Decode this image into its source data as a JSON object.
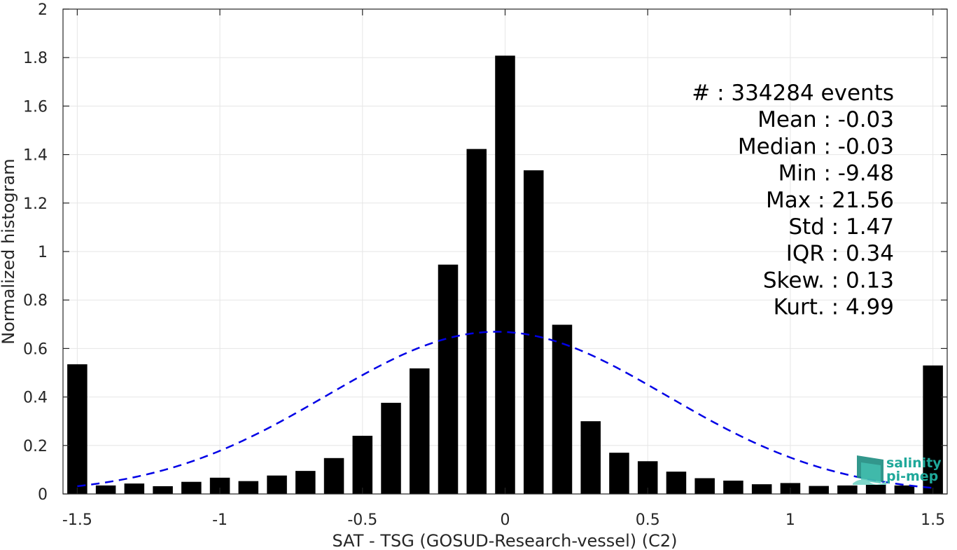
{
  "chart_data": {
    "type": "bar",
    "xlabel": "SAT - TSG (GOSUD-Research-vessel) (C2)",
    "ylabel": "Normalized histogram",
    "xlim": [
      -1.55,
      1.55
    ],
    "ylim": [
      0,
      2
    ],
    "x_ticks": [
      -1.5,
      -1,
      -0.5,
      0,
      0.5,
      1,
      1.5
    ],
    "x_tick_labels": [
      "-1.5",
      "-1",
      "-0.5",
      "0",
      "0.5",
      "1",
      "1.5"
    ],
    "y_ticks": [
      0,
      0.2,
      0.4,
      0.6,
      0.8,
      1,
      1.2,
      1.4,
      1.6,
      1.8,
      2
    ],
    "y_tick_labels": [
      "0",
      "0.2",
      "0.4",
      "0.6",
      "0.8",
      "1",
      "1.2",
      "1.4",
      "1.6",
      "1.8",
      "2"
    ],
    "grid": true,
    "bar_color": "#000000",
    "bar_width": 0.07,
    "bars": {
      "x": [
        -1.5,
        -1.4,
        -1.3,
        -1.2,
        -1.1,
        -1.0,
        -0.9,
        -0.8,
        -0.7,
        -0.6,
        -0.5,
        -0.4,
        -0.3,
        -0.2,
        -0.1,
        0.0,
        0.1,
        0.2,
        0.3,
        0.4,
        0.5,
        0.6,
        0.7,
        0.8,
        0.9,
        1.0,
        1.1,
        1.2,
        1.3,
        1.4,
        1.5
      ],
      "values": [
        0.535,
        0.035,
        0.043,
        0.032,
        0.05,
        0.067,
        0.053,
        0.076,
        0.095,
        0.148,
        0.24,
        0.376,
        0.518,
        0.946,
        1.423,
        1.808,
        1.335,
        0.698,
        0.3,
        0.17,
        0.135,
        0.092,
        0.065,
        0.055,
        0.04,
        0.045,
        0.033,
        0.035,
        0.038,
        0.035,
        0.53
      ]
    },
    "gaussian_fit": {
      "color": "#0000e6",
      "style": "dashed",
      "mean": -0.03,
      "std": 0.596,
      "x_range": [
        -1.5,
        1.5
      ],
      "peak": 0.669
    },
    "stats": [
      {
        "label": "#  : 334284 events"
      },
      {
        "label": "Mean : -0.03"
      },
      {
        "label": "Median : -0.03"
      },
      {
        "label": "Min : -9.48"
      },
      {
        "label": "Max : 21.56"
      },
      {
        "label": "Std : 1.47"
      },
      {
        "label": "IQR : 0.34"
      },
      {
        "label": "Skew. : 0.13"
      },
      {
        "label": "Kurt. : 4.99"
      }
    ],
    "logo": {
      "line1": "salinity",
      "line2": "pi-mep",
      "icon": "salinity-pimep-logo-icon"
    }
  }
}
